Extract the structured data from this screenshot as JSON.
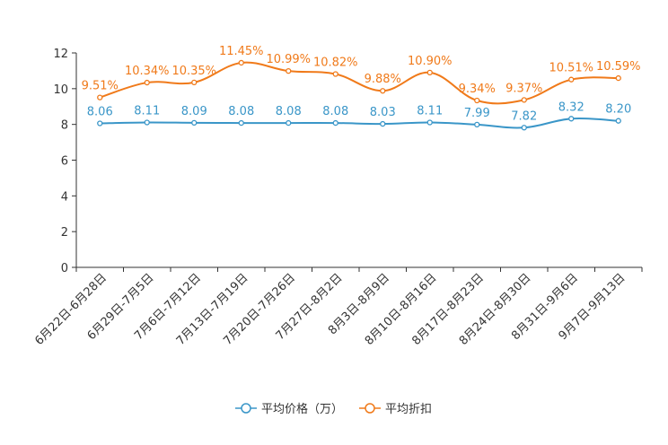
{
  "chart_data": {
    "type": "line",
    "title": "",
    "xlabel": "",
    "ylabel": "",
    "ylim": [
      0,
      12
    ],
    "yticks": [
      "0",
      "2",
      "4",
      "6",
      "8",
      "10",
      "12"
    ],
    "categories": [
      "6月22日-6月28日",
      "6月29日-7月5日",
      "7月6日-7月12日",
      "7月13日-7月19日",
      "7月20日-7月26日",
      "7月27日-8月2日",
      "8月3日-8月9日",
      "8月10日-8月16日",
      "8月17日-8月23日",
      "8月24日-8月30日",
      "8月31日-9月6日",
      "9月7日-9月13日"
    ],
    "series": [
      {
        "name": "平均价格（万）",
        "color": "#3a96c8",
        "values": [
          8.06,
          8.11,
          8.09,
          8.08,
          8.08,
          8.08,
          8.03,
          8.11,
          7.99,
          7.82,
          8.32,
          8.2
        ],
        "labels": [
          "8.06",
          "8.11",
          "8.09",
          "8.08",
          "8.08",
          "8.08",
          "8.03",
          "8.11",
          "7.99",
          "7.82",
          "8.32",
          "8.20"
        ]
      },
      {
        "name": "平均折扣",
        "color": "#f07a1a",
        "values": [
          9.51,
          10.34,
          10.35,
          11.45,
          10.99,
          10.82,
          9.88,
          10.9,
          9.34,
          9.37,
          10.51,
          10.59
        ],
        "labels": [
          "9.51%",
          "10.34%",
          "10.35%",
          "11.45%",
          "10.99%",
          "10.82%",
          "9.88%",
          "10.90%",
          "9.34%",
          "9.37%",
          "10.51%",
          "10.59%"
        ]
      }
    ],
    "legend_position": "bottom-center"
  }
}
